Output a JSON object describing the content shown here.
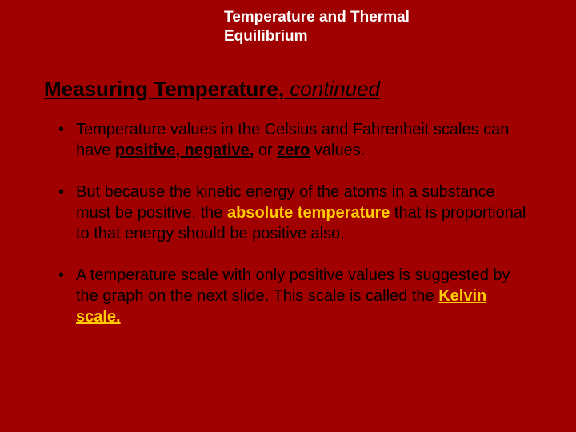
{
  "colors": {
    "background": "#a00000",
    "header_text": "#ffffff",
    "body_text": "#000000",
    "emphasis_text": "#ffcc00"
  },
  "typography": {
    "header_fontsize": 19,
    "title_fontsize": 26,
    "body_fontsize": 20,
    "font_family": "Arial"
  },
  "header": {
    "line1": "Temperature and Thermal",
    "line2": "Equilibrium"
  },
  "title": {
    "main": "Measuring Temperature,",
    "continued": "continued"
  },
  "bullets": [
    {
      "t1": "Temperature values in the Celsius and Fahrenheit scales can have ",
      "e1": "positive, negative,",
      "t2": " or ",
      "e2": "zero",
      "t3": " values."
    },
    {
      "t1": "But because the kinetic energy of the atoms in a substance must be positive, the ",
      "e1": "absolute temperature",
      "t2": " that is proportional to that energy should be positive also."
    },
    {
      "t1": "A temperature scale with only positive values is suggested by the graph on the next slide. This scale is called the ",
      "e1": "Kelvin scale."
    }
  ]
}
